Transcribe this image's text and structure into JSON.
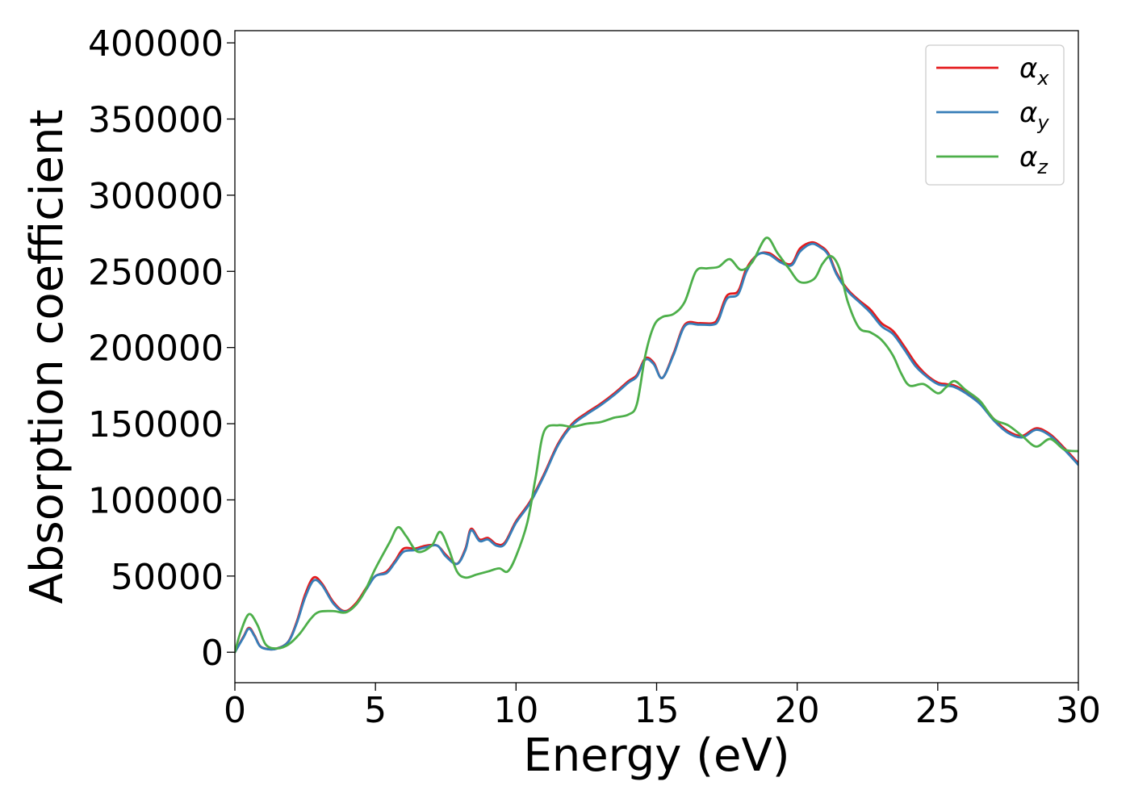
{
  "chart_data": {
    "type": "line",
    "title": "",
    "xlabel": "Energy (eV)",
    "ylabel": "Absorption coefficient",
    "xlim": [
      0,
      30
    ],
    "ylim": [
      -20000,
      408000
    ],
    "xticks": [
      0,
      5,
      10,
      15,
      20,
      25,
      30
    ],
    "yticks": [
      0,
      50000,
      100000,
      150000,
      200000,
      250000,
      300000,
      350000,
      400000
    ],
    "grid": false,
    "legend_position": "top-right",
    "series": [
      {
        "name": "αx",
        "legend_main": "α",
        "legend_sub": "x",
        "color": "#e41a1c",
        "x": [
          0,
          0.3,
          0.5,
          0.7,
          0.9,
          1.2,
          1.5,
          1.9,
          2.2,
          2.5,
          2.8,
          3.1,
          3.5,
          3.9,
          4.3,
          4.7,
          5.0,
          5.4,
          5.7,
          6.0,
          6.4,
          6.8,
          7.2,
          7.5,
          7.9,
          8.2,
          8.4,
          8.7,
          9.0,
          9.3,
          9.6,
          10.0,
          10.5,
          11.0,
          11.5,
          12.0,
          12.5,
          13.0,
          13.5,
          14.0,
          14.3,
          14.6,
          14.9,
          15.2,
          15.6,
          16.0,
          16.5,
          17.0,
          17.2,
          17.5,
          17.9,
          18.2,
          18.6,
          19.0,
          19.4,
          19.8,
          20.1,
          20.5,
          20.8,
          21.1,
          21.4,
          21.8,
          22.2,
          22.6,
          23.0,
          23.4,
          23.8,
          24.2,
          24.6,
          25.0,
          25.3,
          25.6,
          26.0,
          26.5,
          27.0,
          27.5,
          28.0,
          28.5,
          29.0,
          29.5,
          30.0
        ],
        "values": [
          0,
          10000,
          16000,
          11000,
          4000,
          2000,
          2500,
          7000,
          20000,
          38000,
          49000,
          45000,
          33000,
          27000,
          32000,
          43000,
          50000,
          53000,
          60000,
          68000,
          68000,
          70000,
          70000,
          64000,
          58000,
          68000,
          81000,
          74000,
          75000,
          71000,
          72000,
          86000,
          99000,
          117000,
          137000,
          150000,
          157000,
          163000,
          170000,
          178000,
          182000,
          193000,
          190000,
          180000,
          196000,
          215000,
          216000,
          216000,
          220000,
          234000,
          237000,
          252000,
          261000,
          262000,
          257000,
          255000,
          265000,
          269000,
          267000,
          262000,
          249000,
          238000,
          231000,
          225000,
          216000,
          211000,
          201000,
          190000,
          182000,
          177000,
          176000,
          175000,
          171000,
          164000,
          153000,
          145000,
          142000,
          147000,
          143000,
          134000,
          124000
        ]
      },
      {
        "name": "αy",
        "legend_main": "α",
        "legend_sub": "y",
        "color": "#377eb8",
        "x": [
          0,
          0.3,
          0.5,
          0.7,
          0.9,
          1.2,
          1.5,
          1.9,
          2.2,
          2.5,
          2.8,
          3.1,
          3.5,
          3.9,
          4.3,
          4.7,
          5.0,
          5.4,
          5.7,
          6.0,
          6.4,
          6.8,
          7.2,
          7.5,
          7.9,
          8.2,
          8.4,
          8.7,
          9.0,
          9.3,
          9.6,
          10.0,
          10.5,
          11.0,
          11.5,
          12.0,
          12.5,
          13.0,
          13.5,
          14.0,
          14.3,
          14.6,
          14.9,
          15.2,
          15.6,
          16.0,
          16.5,
          17.0,
          17.2,
          17.5,
          17.9,
          18.2,
          18.6,
          19.0,
          19.4,
          19.8,
          20.1,
          20.5,
          20.8,
          21.1,
          21.4,
          21.8,
          22.2,
          22.6,
          23.0,
          23.4,
          23.8,
          24.2,
          24.6,
          25.0,
          25.3,
          25.6,
          26.0,
          26.5,
          27.0,
          27.5,
          28.0,
          28.5,
          29.0,
          29.5,
          30.0
        ],
        "values": [
          0,
          9500,
          15500,
          10500,
          3800,
          1900,
          2400,
          6800,
          19000,
          36000,
          47000,
          44000,
          32000,
          26500,
          31000,
          42000,
          50000,
          52000,
          59000,
          66000,
          67000,
          69000,
          70000,
          63000,
          58000,
          67000,
          80000,
          73000,
          74000,
          70000,
          71000,
          85000,
          98000,
          116000,
          136000,
          149000,
          156000,
          162000,
          169000,
          177000,
          181000,
          192000,
          189000,
          180000,
          195000,
          214000,
          215000,
          215000,
          218000,
          232000,
          235000,
          250000,
          261000,
          261000,
          256000,
          254000,
          263000,
          268000,
          266000,
          261000,
          248000,
          237000,
          230000,
          223000,
          214000,
          209000,
          199000,
          188000,
          181000,
          176000,
          175000,
          174000,
          170000,
          163000,
          152000,
          144000,
          141000,
          146000,
          142000,
          133000,
          123000
        ]
      },
      {
        "name": "αz",
        "legend_main": "α",
        "legend_sub": "z",
        "color": "#4daf4a",
        "x": [
          0,
          0.2,
          0.5,
          0.8,
          1.1,
          1.5,
          1.9,
          2.3,
          2.7,
          3.0,
          3.5,
          4.0,
          4.5,
          5.0,
          5.5,
          5.8,
          6.1,
          6.5,
          7.0,
          7.3,
          7.6,
          7.9,
          8.2,
          8.6,
          9.0,
          9.4,
          9.7,
          10.0,
          10.4,
          10.7,
          11.0,
          11.5,
          12.0,
          12.5,
          13.0,
          13.5,
          14.0,
          14.3,
          14.6,
          14.9,
          15.2,
          15.6,
          16.0,
          16.4,
          16.8,
          17.2,
          17.6,
          18.0,
          18.4,
          18.9,
          19.3,
          19.7,
          20.1,
          20.6,
          20.9,
          21.2,
          21.5,
          21.8,
          22.2,
          22.6,
          23.0,
          23.4,
          23.7,
          24.0,
          24.5,
          25.0,
          25.3,
          25.6,
          26.0,
          26.5,
          27.0,
          27.5,
          28.0,
          28.5,
          29.0,
          29.5,
          30.0
        ],
        "values": [
          0,
          13000,
          25000,
          18000,
          5000,
          2500,
          5000,
          12000,
          22000,
          26500,
          27000,
          26500,
          36000,
          55000,
          72000,
          82000,
          76000,
          66000,
          70000,
          79000,
          68000,
          53000,
          49000,
          51000,
          53000,
          55000,
          53000,
          63000,
          85000,
          115000,
          145000,
          149000,
          148000,
          150000,
          151000,
          154000,
          156000,
          163000,
          195000,
          214000,
          220000,
          222000,
          230000,
          250000,
          252000,
          253000,
          258000,
          251000,
          256000,
          272000,
          262000,
          252000,
          243000,
          245000,
          255000,
          260000,
          252000,
          230000,
          213000,
          210000,
          205000,
          195000,
          183000,
          175000,
          176000,
          170000,
          174000,
          178000,
          172000,
          165000,
          153000,
          149000,
          142000,
          135000,
          140000,
          133000,
          132000
        ]
      }
    ]
  }
}
